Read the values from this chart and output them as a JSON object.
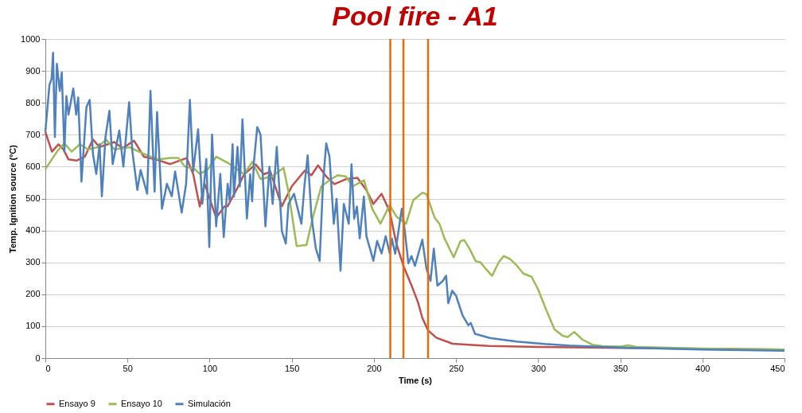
{
  "chart_data": {
    "type": "line",
    "title": "Pool fire - A1",
    "xlabel": "Time (s)",
    "ylabel": "Temp. Ignition source (ºC)",
    "xlim": [
      0,
      450
    ],
    "xticks": [
      0,
      50,
      100,
      150,
      200,
      250,
      300,
      350,
      400,
      450
    ],
    "ylim": [
      0,
      1000
    ],
    "yticks": [
      0,
      100,
      200,
      300,
      400,
      500,
      600,
      700,
      800,
      900,
      1000
    ],
    "grid": "y",
    "legend": "bottom",
    "ref_lines": [
      {
        "axis": "x",
        "value": 210,
        "color": "#e46c0a"
      },
      {
        "axis": "x",
        "value": 218,
        "color": "#e46c0a"
      },
      {
        "axis": "x",
        "value": 233,
        "color": "#e46c0a"
      }
    ],
    "series": [
      {
        "name": "Ensayo 9",
        "color": "#c0504d",
        "x": [
          0,
          4,
          8,
          11,
          14,
          19,
          24,
          29,
          33,
          42,
          47,
          54,
          60,
          67,
          76,
          86,
          90,
          94,
          97,
          104,
          109,
          111,
          117,
          121,
          128,
          133,
          137,
          144,
          150,
          158,
          162,
          166,
          171,
          176,
          183,
          190,
          195.5,
          199.7,
          204.7,
          209.6,
          213.7,
          218,
          223,
          227,
          229.5,
          233,
          238,
          248,
          270,
          300,
          350,
          400,
          450
        ],
        "values": [
          709,
          647,
          670,
          654,
          623,
          619,
          631,
          685,
          661,
          677,
          658,
          681,
          631,
          623,
          608,
          627,
          577,
          475,
          546,
          440,
          475,
          476,
          534,
          576,
          607,
          576,
          584,
          476,
          538,
          588,
          573,
          604,
          569,
          545,
          561,
          565,
          526,
          483,
          515,
          460,
          359,
          289,
          227,
          173,
          126,
          87,
          64,
          45,
          38,
          35,
          32,
          29,
          27
        ]
      },
      {
        "name": "Ensayo 10",
        "color": "#9bbb59",
        "x": [
          0,
          4,
          7.5,
          11.6,
          16,
          21,
          26,
          32,
          37,
          42,
          51,
          57,
          64,
          69,
          76,
          81,
          85,
          91,
          94,
          99,
          104,
          111,
          121,
          126,
          131,
          138,
          145,
          148,
          153,
          159,
          163,
          168,
          174,
          178,
          183,
          187,
          194,
          199,
          204,
          209.6,
          213.7,
          219.6,
          224,
          229.5,
          232,
          237,
          240,
          243,
          248.6,
          252.7,
          255,
          258,
          262,
          265,
          268,
          272,
          276,
          279,
          283,
          287,
          291,
          296,
          300,
          305,
          310,
          315,
          318,
          322,
          327,
          333,
          340,
          350,
          355,
          360,
          400,
          450
        ],
        "values": [
          592,
          623,
          650,
          673,
          647,
          670,
          654,
          661,
          685,
          654,
          661,
          647,
          631,
          623,
          627,
          627,
          600,
          592,
          577,
          592,
          631,
          612,
          576,
          615,
          561,
          569,
          596,
          522,
          351,
          355,
          444,
          538,
          561,
          573,
          569,
          538,
          557,
          468,
          421,
          479,
          444,
          421,
          495,
          518,
          514,
          440,
          420,
          375,
          316,
          366,
          370,
          345,
          304,
          300,
          280,
          258,
          300,
          320,
          310,
          290,
          265,
          255,
          215,
          150,
          90,
          70,
          66,
          82,
          58,
          42,
          37,
          36,
          40,
          35,
          30,
          27
        ]
      },
      {
        "name": "Simulación",
        "color": "#4f81bd",
        "x": [
          0,
          2.5,
          3.8,
          4.7,
          5.8,
          7,
          8.8,
          10,
          11.6,
          12.8,
          14.1,
          17,
          18.8,
          20,
          22,
          25,
          27,
          29,
          31,
          33,
          34.4,
          36.6,
          39,
          41,
          45,
          47.5,
          51,
          53,
          56,
          58,
          62,
          64,
          66.5,
          68,
          71,
          74,
          77,
          79,
          83,
          85.7,
          88,
          90,
          93,
          95.6,
          98,
          99.8,
          101.5,
          104,
          106.5,
          108.6,
          111,
          112.3,
          114,
          114.8,
          117,
          118.4,
          120,
          122.7,
          124.7,
          125.9,
          127,
          129,
          131,
          134,
          136.4,
          138.4,
          140.9,
          144,
          146.4,
          148,
          151.4,
          155.9,
          157.7,
          159.7,
          162,
          164.7,
          167,
          169,
          171,
          173,
          175.6,
          177.3,
          179.7,
          181.7,
          184.7,
          186.4,
          188,
          189.7,
          191.4,
          193.9,
          195.5,
          199.7,
          202,
          204.7,
          207.2,
          209.7,
          211,
          213,
          215.4,
          217,
          218.7,
          221,
          222.9,
          225,
          229.5,
          232,
          234.5,
          236.5,
          238.7,
          242,
          244,
          245.3,
          247.7,
          250,
          254,
          257.5,
          259,
          261.6,
          270.6,
          287,
          304,
          319,
          350,
          400,
          450
        ],
        "values": [
          709,
          856,
          875,
          957,
          693,
          922,
          837,
          895,
          647,
          821,
          763,
          845,
          763,
          817,
          553,
          786,
          809,
          639,
          577,
          670,
          507,
          693,
          775,
          608,
          713,
          600,
          802,
          647,
          527,
          589,
          515,
          837,
          522,
          771,
          468,
          546,
          507,
          585,
          456,
          546,
          809,
          585,
          717,
          484,
          624,
          348,
          701,
          413,
          577,
          379,
          546,
          491,
          670,
          506,
          662,
          538,
          748,
          437,
          576,
          491,
          615,
          724,
          701,
          413,
          600,
          483,
          662,
          398,
          359,
          483,
          515,
          421,
          538,
          635,
          444,
          343,
          305,
          545,
          673,
          631,
          421,
          499,
          274,
          483,
          421,
          607,
          437,
          475,
          375,
          506,
          382,
          305,
          367,
          328,
          382,
          328,
          374,
          327,
          413,
          468,
          405,
          297,
          320,
          289,
          371,
          281,
          242,
          343,
          227,
          242,
          258,
          172,
          211,
          196,
          134,
          103,
          110,
          76,
          63,
          52,
          44,
          39,
          33,
          27,
          23
        ]
      }
    ]
  }
}
